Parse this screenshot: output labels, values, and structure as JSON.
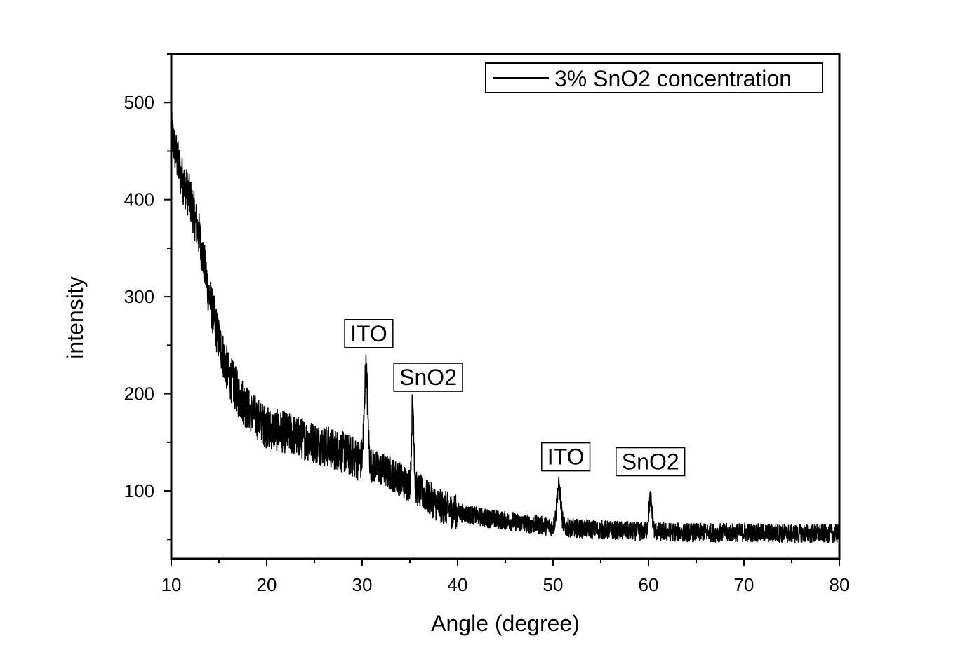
{
  "chart_data": {
    "type": "line",
    "title": "",
    "xlabel": "Angle (degree)",
    "ylabel": "intensity",
    "xlim": [
      10,
      80
    ],
    "ylim": [
      30,
      550
    ],
    "xticks": [
      10,
      20,
      30,
      40,
      50,
      60,
      70,
      80
    ],
    "yticks": [
      100,
      200,
      300,
      400,
      500
    ],
    "grid": false,
    "legend": {
      "position": "top-right",
      "entries": [
        "3% SnO2 concentration"
      ]
    },
    "series": [
      {
        "name": "3% SnO2 concentration",
        "baseline": {
          "x": [
            10,
            11,
            12,
            13,
            14,
            15,
            16,
            17,
            18,
            20,
            22,
            25,
            28,
            30,
            33,
            36,
            38,
            40,
            43,
            46,
            50,
            55,
            60,
            65,
            70,
            75,
            80
          ],
          "y": [
            470,
            425,
            400,
            360,
            300,
            255,
            220,
            200,
            185,
            165,
            160,
            150,
            140,
            130,
            118,
            100,
            85,
            78,
            72,
            68,
            63,
            60,
            58,
            57,
            57,
            56,
            56
          ]
        },
        "noise_amplitude": [
          {
            "x_from": 10,
            "x_to": 18,
            "amplitude": 24
          },
          {
            "x_from": 18,
            "x_to": 30,
            "amplitude": 22
          },
          {
            "x_from": 30,
            "x_to": 40,
            "amplitude": 18
          },
          {
            "x_from": 40,
            "x_to": 80,
            "amplitude": 10
          }
        ],
        "peaks": [
          {
            "x": 30.4,
            "y": 225,
            "width": 0.25
          },
          {
            "x": 35.3,
            "y": 190,
            "width": 0.18
          },
          {
            "x": 50.6,
            "y": 105,
            "width": 0.3
          },
          {
            "x": 60.2,
            "y": 92,
            "width": 0.25
          }
        ]
      }
    ],
    "annotations": [
      {
        "text": "ITO",
        "x": 30.4,
        "y": 262
      },
      {
        "text": "SnO2",
        "x": 35.3,
        "y": 217
      },
      {
        "text": "ITO",
        "x": 50.6,
        "y": 135
      },
      {
        "text": "SnO2",
        "x": 60.2,
        "y": 130
      }
    ]
  }
}
